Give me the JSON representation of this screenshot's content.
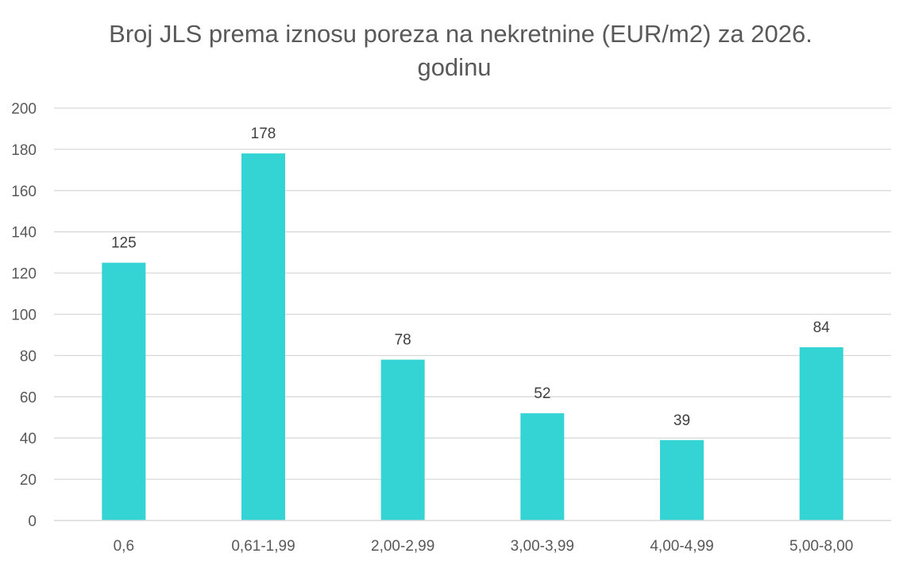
{
  "chart_data": {
    "type": "bar",
    "title_lines": [
      "Broj JLS prema iznosu poreza na nekretnine (EUR/m2) za 2026.",
      "godinu"
    ],
    "categories": [
      "0,6",
      "0,61-1,99",
      "2,00-2,99",
      "3,00-3,99",
      "4,00-4,99",
      "5,00-8,00"
    ],
    "series": [
      {
        "values": [
          125,
          178,
          78,
          52,
          39,
          84
        ],
        "color": "#35d4d4"
      }
    ],
    "data_labels": [
      "125",
      "178",
      "78",
      "52",
      "39",
      "84"
    ],
    "y_ticks": [
      "0",
      "20",
      "40",
      "60",
      "80",
      "100",
      "120",
      "140",
      "160",
      "180",
      "200"
    ],
    "ylim": [
      0,
      200
    ],
    "y_step": 20,
    "grid": true,
    "legend": "none",
    "gridline_color": "#d9d9d9",
    "text_color": "#595959"
  }
}
